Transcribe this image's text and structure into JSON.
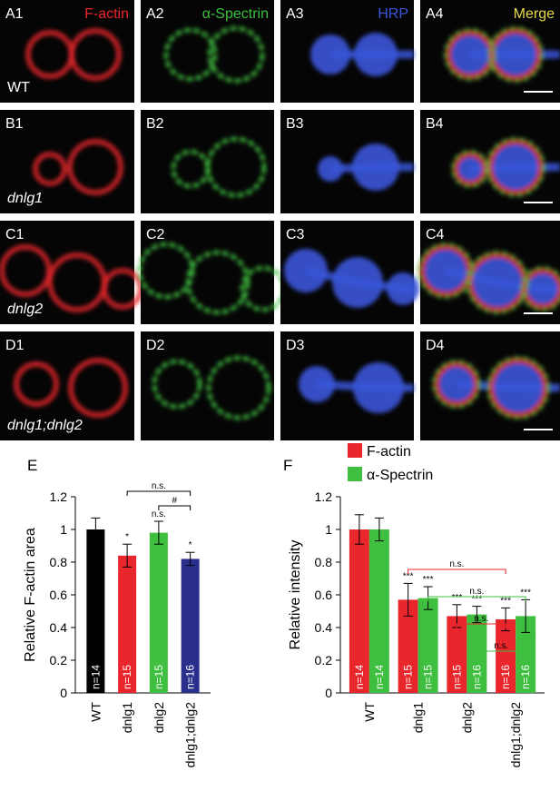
{
  "panels": {
    "channels": [
      {
        "name": "F-actin",
        "color": "#e8262c"
      },
      {
        "name": "α-Spectrin",
        "color": "#3fbf3f"
      },
      {
        "name": "HRP",
        "color": "#3a55d8"
      },
      {
        "name": "Merge",
        "color": "#e8d84a"
      }
    ],
    "rows": [
      {
        "genotype": "WT",
        "cells": [
          "A1",
          "A2",
          "A3",
          "A4"
        ]
      },
      {
        "genotype": "dnlg1",
        "cells": [
          "B1",
          "B2",
          "B3",
          "B4"
        ]
      },
      {
        "genotype": "dnlg2",
        "cells": [
          "C1",
          "C2",
          "C3",
          "C4"
        ]
      },
      {
        "genotype": "dnlg1;dnlg2",
        "cells": [
          "D1",
          "D2",
          "D3",
          "D4"
        ]
      }
    ]
  },
  "chart_data": [
    {
      "type": "bar",
      "panel": "E",
      "ylabel": "Relative F-actin area",
      "categories": [
        "WT",
        "dnlg1",
        "dnlg2",
        "dnlg1;dnlg2"
      ],
      "values": [
        1.0,
        0.84,
        0.98,
        0.82
      ],
      "errors": [
        0.07,
        0.07,
        0.07,
        0.04
      ],
      "colors": [
        "#000000",
        "#e8262c",
        "#3fbf3f",
        "#2b2f8c"
      ],
      "n_labels": [
        "n=14",
        "n=15",
        "n=15",
        "n=16"
      ],
      "significance": [
        null,
        "*",
        "n.s.",
        "*"
      ],
      "brackets": [
        {
          "label": "n.s.",
          "from": 1,
          "to": 3
        },
        {
          "label": "#",
          "from": 2,
          "to": 3
        }
      ],
      "ylim": [
        0,
        1.2
      ],
      "yticks": [
        0,
        0.2,
        0.4,
        0.6,
        0.8,
        1,
        1.2
      ]
    },
    {
      "type": "grouped-bar",
      "panel": "F",
      "ylabel": "Relative intensity",
      "categories": [
        "WT",
        "dnlg1",
        "dnlg2",
        "dnlg1;dnlg2"
      ],
      "series": [
        {
          "name": "F-actin",
          "color": "#e8262c",
          "values": [
            1.0,
            0.57,
            0.47,
            0.45
          ],
          "errors": [
            0.09,
            0.1,
            0.07,
            0.07
          ],
          "n_labels": [
            "n=14",
            "n=15",
            "n=15",
            "n=16"
          ],
          "significance": [
            null,
            "***",
            "***",
            "***"
          ]
        },
        {
          "name": "α-Spectrin",
          "color": "#3fbf3f",
          "values": [
            1.0,
            0.58,
            0.48,
            0.47
          ],
          "errors": [
            0.07,
            0.07,
            0.05,
            0.1
          ],
          "n_labels": [
            "n=14",
            "n=15",
            "n=16",
            "n=16"
          ],
          "significance": [
            null,
            "***",
            "***",
            "***"
          ]
        }
      ],
      "brackets": [
        {
          "label": "n.s.",
          "from": 1,
          "to": 3,
          "series": 0
        },
        {
          "label": "n.s.",
          "from": 1,
          "to": 3,
          "series": 1
        },
        {
          "label": "n.s.",
          "from": 2,
          "to": 3,
          "series": 0
        },
        {
          "label": "n.s.",
          "from": 2,
          "to": 3,
          "series": 1
        }
      ],
      "ylim": [
        0,
        1.2
      ],
      "yticks": [
        0,
        0.2,
        0.4,
        0.6,
        0.8,
        1,
        1.2
      ]
    }
  ]
}
